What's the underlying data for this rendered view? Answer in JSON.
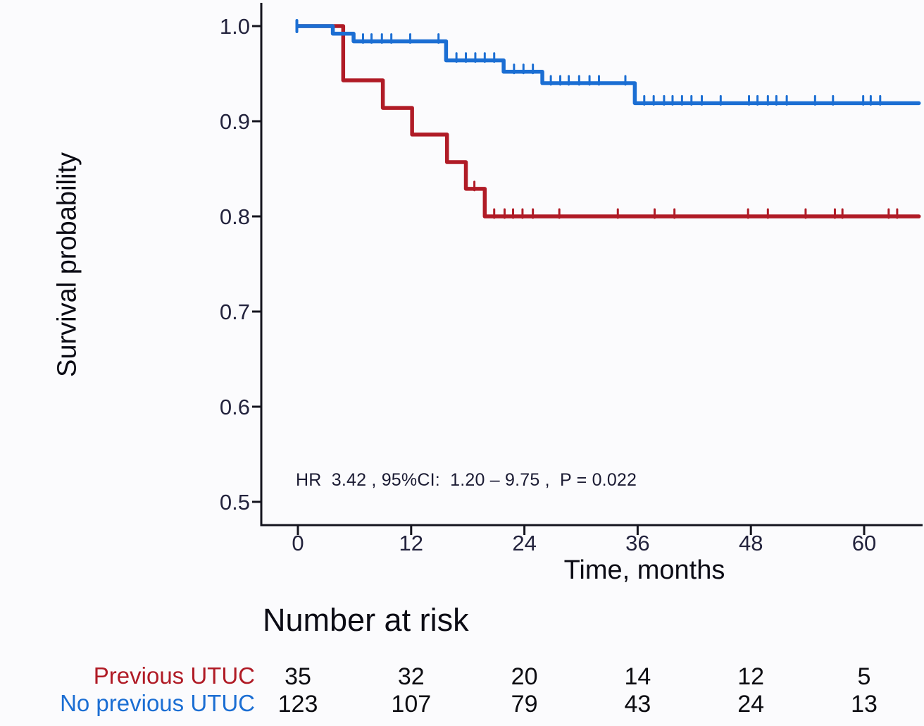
{
  "chart_data": {
    "type": "line",
    "subtype": "kaplan-meier-step",
    "title": "",
    "xlabel": "Time, months",
    "ylabel": "Survival probability",
    "annotation": "HR  3.42 , 95%CI:  1.20 – 9.75 ,  P = 0.022",
    "x_ticks": [
      0,
      12,
      24,
      36,
      48,
      60
    ],
    "y_ticks": [
      "1.0",
      "0.9",
      "0.8",
      "0.7",
      "0.6",
      "0.5"
    ],
    "y_tick_values": [
      1.0,
      0.9,
      0.8,
      0.7,
      0.6,
      0.5
    ],
    "xlim": [
      0,
      66
    ],
    "ylim": [
      0.48,
      1.0
    ],
    "grid": false,
    "legend_position": "none",
    "curve_end_time": 65.8,
    "series": [
      {
        "name": "Previous UTUC",
        "color": "#b01b26",
        "start_cap": false,
        "steps": [
          [
            0,
            1.0
          ],
          [
            4.8,
            0.943
          ],
          [
            9.0,
            0.914
          ],
          [
            12.1,
            0.886
          ],
          [
            15.8,
            0.857
          ],
          [
            17.8,
            0.829
          ],
          [
            19.8,
            0.8
          ]
        ],
        "censors": [
          [
            18.7,
            0.829
          ],
          [
            20.8,
            0.8
          ],
          [
            21.9,
            0.8
          ],
          [
            22.8,
            0.8
          ],
          [
            23.8,
            0.8
          ],
          [
            24.9,
            0.8
          ],
          [
            27.7,
            0.8
          ],
          [
            33.9,
            0.8
          ],
          [
            37.8,
            0.8
          ],
          [
            39.9,
            0.8
          ],
          [
            47.7,
            0.8
          ],
          [
            49.8,
            0.8
          ],
          [
            53.8,
            0.8
          ],
          [
            56.9,
            0.8
          ],
          [
            57.7,
            0.8
          ],
          [
            62.6,
            0.8
          ],
          [
            63.5,
            0.8
          ]
        ]
      },
      {
        "name": "No previous UTUC",
        "color": "#1b6ed3",
        "start_cap": true,
        "steps": [
          [
            0,
            1.0
          ],
          [
            3.7,
            0.992
          ],
          [
            5.9,
            0.984
          ],
          [
            15.7,
            0.964
          ],
          [
            21.8,
            0.952
          ],
          [
            25.9,
            0.94
          ],
          [
            35.7,
            0.919
          ]
        ],
        "censors": [
          [
            6.9,
            0.984
          ],
          [
            7.8,
            0.984
          ],
          [
            8.9,
            0.984
          ],
          [
            9.9,
            0.984
          ],
          [
            11.9,
            0.984
          ],
          [
            14.9,
            0.984
          ],
          [
            16.8,
            0.964
          ],
          [
            17.8,
            0.964
          ],
          [
            18.8,
            0.964
          ],
          [
            19.8,
            0.964
          ],
          [
            20.8,
            0.964
          ],
          [
            22.9,
            0.952
          ],
          [
            23.9,
            0.952
          ],
          [
            24.9,
            0.952
          ],
          [
            26.8,
            0.94
          ],
          [
            27.8,
            0.94
          ],
          [
            28.7,
            0.94
          ],
          [
            29.8,
            0.94
          ],
          [
            30.9,
            0.94
          ],
          [
            31.9,
            0.94
          ],
          [
            34.7,
            0.94
          ],
          [
            36.7,
            0.919
          ],
          [
            37.7,
            0.919
          ],
          [
            38.8,
            0.919
          ],
          [
            39.7,
            0.919
          ],
          [
            40.7,
            0.919
          ],
          [
            41.7,
            0.919
          ],
          [
            42.8,
            0.919
          ],
          [
            44.8,
            0.919
          ],
          [
            47.8,
            0.919
          ],
          [
            48.7,
            0.919
          ],
          [
            49.8,
            0.919
          ],
          [
            50.7,
            0.919
          ],
          [
            51.8,
            0.919
          ],
          [
            54.8,
            0.919
          ],
          [
            56.7,
            0.919
          ],
          [
            59.9,
            0.919
          ],
          [
            60.7,
            0.919
          ],
          [
            61.7,
            0.919
          ]
        ]
      }
    ]
  },
  "risk_table": {
    "title": "Number at risk",
    "time_points": [
      0,
      12,
      24,
      36,
      48,
      60
    ],
    "rows": [
      {
        "label": "Previous UTUC",
        "color": "#b01b26",
        "counts": [
          "35",
          "32",
          "20",
          "14",
          "12",
          "5"
        ]
      },
      {
        "label": "No previous UTUC",
        "color": "#1b6ed3",
        "counts": [
          "123",
          "107",
          "79",
          "43",
          "24",
          "13"
        ]
      }
    ]
  },
  "colors": {
    "background": "#fbfbfd",
    "axis": "#14141e",
    "tick_label": "#23233d",
    "annotation_text": "#1b1b33",
    "red_series": "#b01b26",
    "blue_series": "#1b6ed3"
  }
}
